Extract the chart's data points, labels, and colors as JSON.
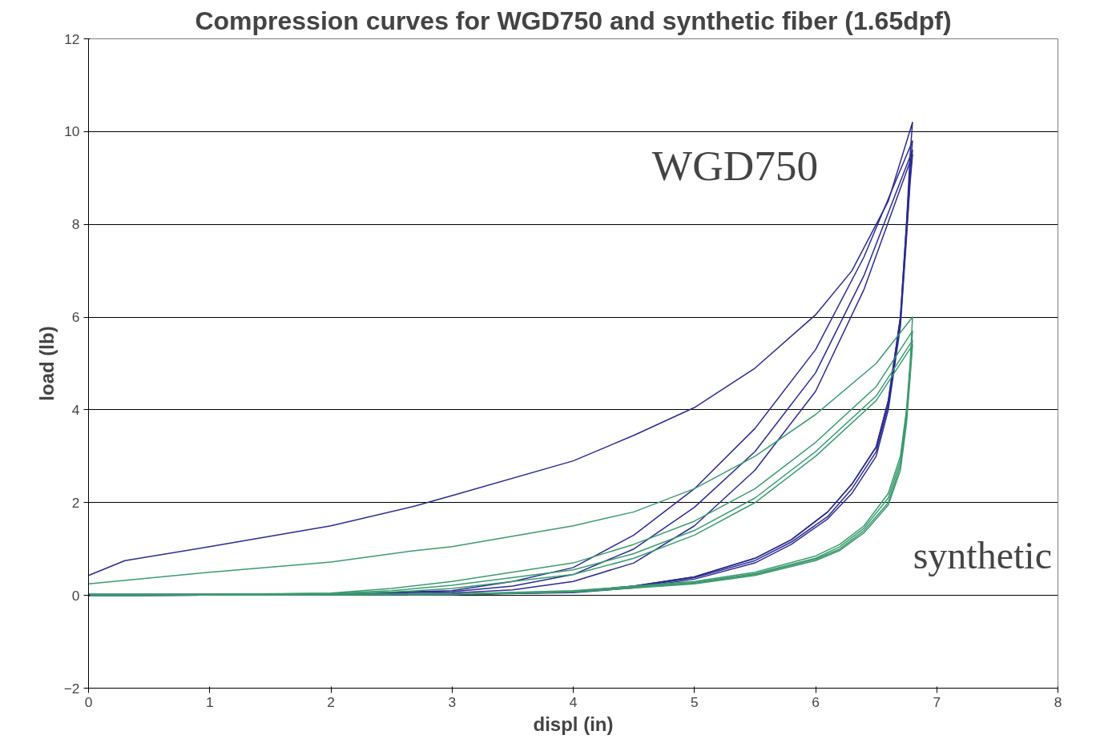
{
  "chart_data": {
    "type": "line",
    "title": "Compression curves for WGD750 and synthetic fiber (1.65dpf)",
    "xlabel": "displ (in)",
    "ylabel": "load (lb)",
    "xlim": [
      0,
      8
    ],
    "xticks": [
      0,
      1,
      2,
      3,
      4,
      5,
      6,
      7,
      8
    ],
    "ylim": [
      -2,
      12
    ],
    "yticks": [
      -2,
      0,
      2,
      4,
      6,
      8,
      10,
      12
    ],
    "grid": "y",
    "marker": "none",
    "line_style": "solid",
    "annotations": [
      "WGD750",
      "synthetic"
    ],
    "series": [
      {
        "color": "#2b2b8f",
        "x": [
          0,
          0.3,
          1,
          2,
          2.7,
          3,
          4,
          4.5,
          5,
          5.5,
          6,
          6.3,
          6.6,
          6.8,
          6.78,
          6.75,
          6.7,
          6.6,
          6.5,
          6.3,
          6.1,
          5.8,
          5.5,
          5,
          4.5,
          4,
          3,
          0
        ],
        "values": [
          0.43,
          0.75,
          1.05,
          1.5,
          1.93,
          2.15,
          2.9,
          3.45,
          4.05,
          4.9,
          6.05,
          7.0,
          8.5,
          10.2,
          9.5,
          8.0,
          6.0,
          4.2,
          3.2,
          2.4,
          1.8,
          1.2,
          0.8,
          0.4,
          0.2,
          0.08,
          0.02,
          0
        ]
      },
      {
        "color": "#2b2b8f",
        "x": [
          0,
          1,
          2,
          3,
          3.5,
          4,
          4.5,
          5,
          5.5,
          6,
          6.4,
          6.8,
          6.78,
          6.75,
          6.7,
          6.6,
          6.5,
          6.3,
          6.1,
          5.8,
          5.5,
          5,
          4.5,
          4,
          3,
          0
        ],
        "values": [
          0.02,
          0.02,
          0.03,
          0.1,
          0.3,
          0.6,
          1.3,
          2.3,
          3.6,
          5.3,
          7.3,
          9.8,
          9.2,
          8.0,
          6.0,
          4.2,
          3.2,
          2.4,
          1.8,
          1.2,
          0.8,
          0.4,
          0.2,
          0.08,
          0.02,
          0
        ]
      },
      {
        "color": "#2b2b8f",
        "x": [
          0,
          1,
          2,
          3,
          3.5,
          4,
          4.5,
          5,
          5.5,
          6,
          6.4,
          6.8,
          6.78,
          6.75,
          6.7,
          6.6,
          6.5,
          6.3,
          6.1,
          5.8,
          5.5,
          5,
          4.5,
          4,
          3,
          0
        ],
        "values": [
          0.02,
          0.02,
          0.03,
          0.08,
          0.2,
          0.45,
          1.0,
          1.9,
          3.1,
          4.8,
          6.9,
          9.6,
          9.0,
          7.8,
          5.9,
          4.1,
          3.1,
          2.3,
          1.7,
          1.15,
          0.75,
          0.38,
          0.18,
          0.07,
          0.02,
          0
        ]
      },
      {
        "color": "#2b2b8f",
        "x": [
          0,
          1,
          2,
          3,
          3.5,
          4,
          4.5,
          5,
          5.5,
          6,
          6.4,
          6.8,
          6.78,
          6.75,
          6.7,
          6.6,
          6.5,
          6.3,
          6.1,
          5.8,
          5.5,
          5,
          4.5,
          4,
          3,
          0
        ],
        "values": [
          0.02,
          0.02,
          0.02,
          0.05,
          0.12,
          0.3,
          0.7,
          1.5,
          2.7,
          4.4,
          6.6,
          9.5,
          8.9,
          7.7,
          5.8,
          4.0,
          3.0,
          2.2,
          1.65,
          1.1,
          0.7,
          0.35,
          0.16,
          0.06,
          0.02,
          0
        ]
      },
      {
        "color": "#3c9a6e",
        "x": [
          0,
          1,
          2,
          2.65,
          3,
          4,
          4.5,
          5,
          5.5,
          6,
          6.5,
          6.8,
          6.78,
          6.75,
          6.7,
          6.6,
          6.4,
          6.2,
          6,
          5.5,
          5,
          4,
          3,
          0
        ],
        "values": [
          0.25,
          0.5,
          0.72,
          0.95,
          1.05,
          1.5,
          1.8,
          2.3,
          3.0,
          3.9,
          5.0,
          6.0,
          5.0,
          4.0,
          3.0,
          2.2,
          1.5,
          1.1,
          0.85,
          0.5,
          0.3,
          0.1,
          0.03,
          0
        ]
      },
      {
        "color": "#3c9a6e",
        "x": [
          0,
          1,
          2,
          2.5,
          3,
          4,
          4.5,
          5,
          5.5,
          6,
          6.5,
          6.8,
          6.78,
          6.75,
          6.7,
          6.6,
          6.4,
          6.2,
          6,
          5.5,
          5,
          4,
          3,
          0
        ],
        "values": [
          0.02,
          0.02,
          0.05,
          0.15,
          0.3,
          0.7,
          1.1,
          1.6,
          2.3,
          3.3,
          4.5,
          5.7,
          4.9,
          3.9,
          2.9,
          2.1,
          1.45,
          1.05,
          0.8,
          0.47,
          0.28,
          0.09,
          0.03,
          0
        ]
      },
      {
        "color": "#3c9a6e",
        "x": [
          0,
          1,
          2,
          2.5,
          3,
          4,
          4.5,
          5,
          5.5,
          6,
          6.5,
          6.8,
          6.78,
          6.75,
          6.7,
          6.6,
          6.4,
          6.2,
          6,
          5.5,
          5,
          4,
          3,
          0
        ],
        "values": [
          0.02,
          0.02,
          0.04,
          0.1,
          0.22,
          0.55,
          0.9,
          1.4,
          2.1,
          3.1,
          4.3,
          5.5,
          4.8,
          3.8,
          2.8,
          2.0,
          1.4,
          1.0,
          0.78,
          0.45,
          0.26,
          0.08,
          0.02,
          0
        ]
      },
      {
        "color": "#3c9a6e",
        "x": [
          0,
          1,
          2,
          2.5,
          3,
          4,
          4.5,
          5,
          5.5,
          6,
          6.5,
          6.8,
          6.78,
          6.75,
          6.7,
          6.6,
          6.4,
          6.2,
          6,
          5.5,
          5,
          4,
          3,
          0
        ],
        "values": [
          0.02,
          0.02,
          0.03,
          0.07,
          0.15,
          0.45,
          0.8,
          1.3,
          2.0,
          3.0,
          4.2,
          5.4,
          4.7,
          3.7,
          2.7,
          1.95,
          1.35,
          0.97,
          0.75,
          0.43,
          0.25,
          0.07,
          0.02,
          0
        ]
      }
    ]
  }
}
